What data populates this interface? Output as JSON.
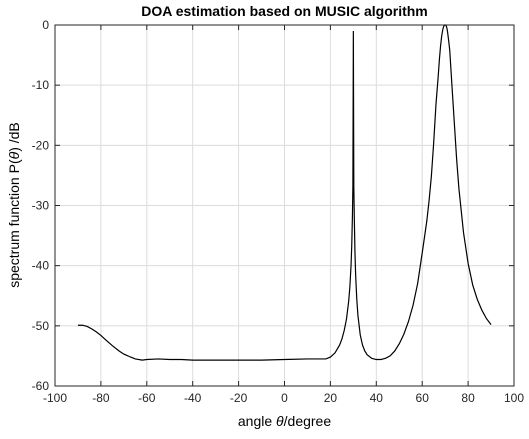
{
  "chart_data": {
    "type": "line",
    "title": "DOA estimation based on MUSIC algorithm",
    "xlabel_prefix": "angle ",
    "xlabel_symbol": "θ",
    "xlabel_suffix": "/degree",
    "ylabel_prefix": "spectrum function P(",
    "ylabel_symbol": "θ",
    "ylabel_suffix": ") /dB",
    "xlim": [
      -100,
      100
    ],
    "ylim": [
      -60,
      0
    ],
    "xticks": [
      -100,
      -80,
      -60,
      -40,
      -20,
      0,
      20,
      40,
      60,
      80,
      100
    ],
    "yticks": [
      0,
      -10,
      -20,
      -30,
      -40,
      -50,
      -60
    ],
    "grid": true,
    "series": [
      {
        "color": "#000000",
        "x": [
          -90,
          -88,
          -86,
          -84,
          -82,
          -80,
          -78,
          -75,
          -72,
          -70,
          -67,
          -65,
          -62,
          -60,
          -55,
          -50,
          -45,
          -40,
          -30,
          -20,
          -10,
          0,
          10,
          15,
          18,
          20,
          22,
          24,
          25,
          26,
          27,
          28,
          28.5,
          29,
          29.3,
          29.6,
          29.8,
          30,
          30.2,
          30.4,
          30.7,
          31,
          31.5,
          32,
          33,
          34,
          35,
          36,
          38,
          40,
          42,
          44,
          46,
          48,
          50,
          52,
          54,
          56,
          58,
          60,
          62,
          63,
          64,
          65,
          66,
          67,
          67.5,
          68,
          68.5,
          69,
          69.3,
          69.6,
          69.8,
          70,
          70.2,
          70.4,
          70.7,
          71,
          71.5,
          72,
          73,
          74,
          75,
          76,
          78,
          80,
          82,
          84,
          86,
          88,
          90
        ],
        "y": [
          -49.9,
          -49.9,
          -50.1,
          -50.5,
          -51.0,
          -51.6,
          -52.3,
          -53.3,
          -54.2,
          -54.7,
          -55.2,
          -55.5,
          -55.7,
          -55.6,
          -55.5,
          -55.6,
          -55.6,
          -55.7,
          -55.7,
          -55.7,
          -55.7,
          -55.6,
          -55.5,
          -55.5,
          -55.5,
          -55.2,
          -54.5,
          -53.2,
          -52.2,
          -50.8,
          -48.9,
          -45.8,
          -43.4,
          -39.9,
          -36.7,
          -31.7,
          -26.8,
          -1.0,
          -26.8,
          -31.7,
          -37.8,
          -41.6,
          -45.6,
          -48.3,
          -51.5,
          -53.2,
          -54.2,
          -54.8,
          -55.4,
          -55.6,
          -55.6,
          -55.4,
          -55.0,
          -54.2,
          -53.0,
          -51.4,
          -49.3,
          -46.6,
          -43.0,
          -37.9,
          -32.6,
          -29.2,
          -25.1,
          -19.6,
          -13.2,
          -8.4,
          -5.7,
          -3.5,
          -1.8,
          -0.7,
          -0.3,
          -0.1,
          0.0,
          0.0,
          0.0,
          -0.1,
          -0.4,
          -1.0,
          -2.5,
          -4.2,
          -10.3,
          -16.3,
          -22.3,
          -27.2,
          -34.5,
          -39.6,
          -43.2,
          -45.6,
          -47.4,
          -48.8,
          -49.8
        ]
      }
    ]
  }
}
